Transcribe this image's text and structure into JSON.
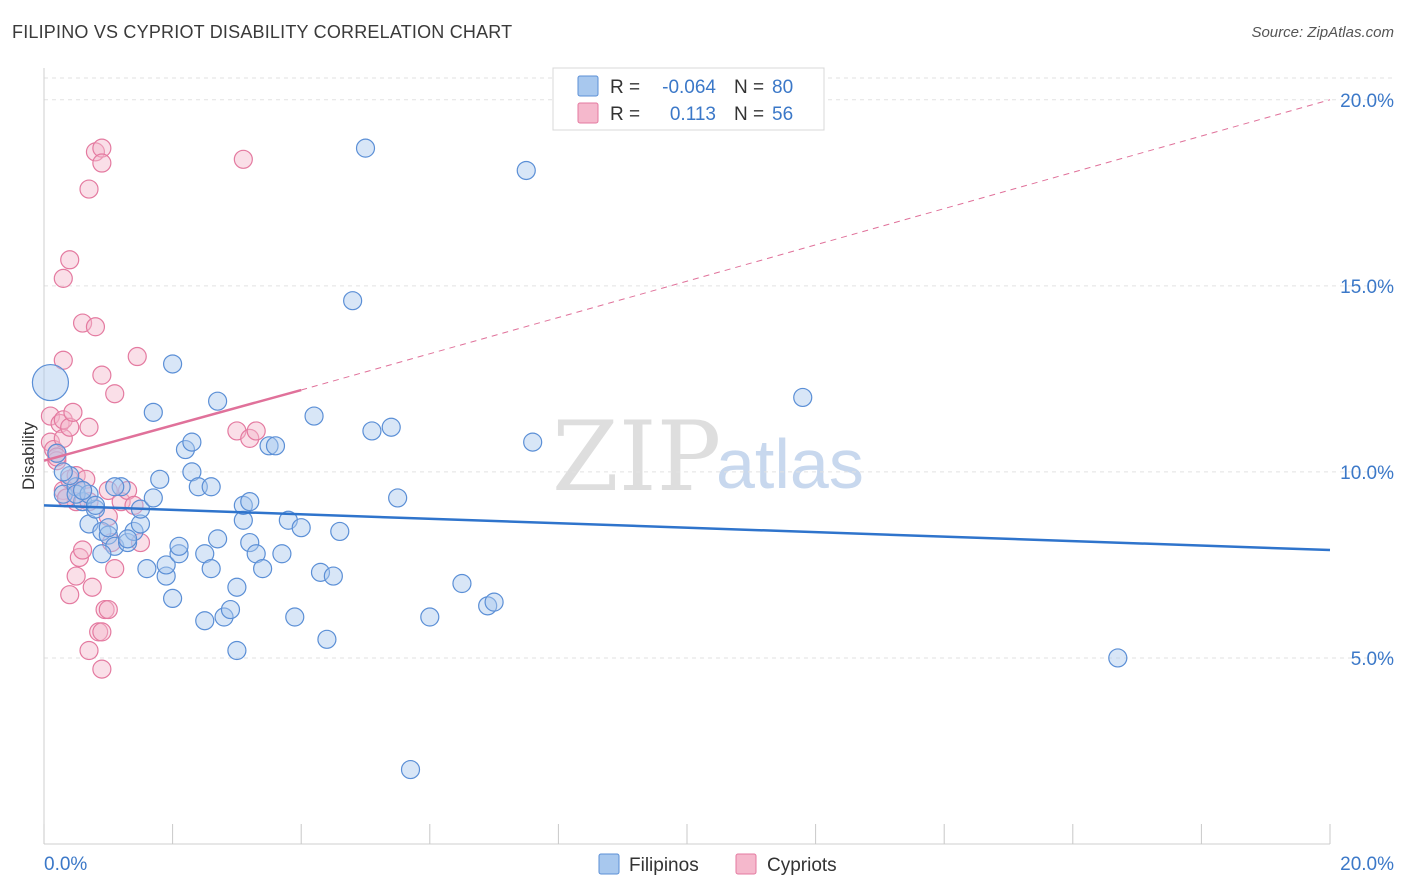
{
  "title": "FILIPINO VS CYPRIOT DISABILITY CORRELATION CHART",
  "source": "Source: ZipAtlas.com",
  "watermark": {
    "zip": "ZIP",
    "atlas": "atlas"
  },
  "colors": {
    "blue_fill": "#a8c8ee",
    "blue_stroke": "#5b8fd6",
    "blue_line": "#2f74cc",
    "pink_fill": "#f5b8cc",
    "pink_stroke": "#e47aa0",
    "pink_line": "#e0719a",
    "tick_text": "#3b78c8",
    "grid": "#e2e2e2"
  },
  "legend_top": {
    "rows": [
      {
        "r_label": "R =",
        "r_value": "-0.064",
        "n_label": "N =",
        "n_value": "80",
        "series": "Filipinos"
      },
      {
        "r_label": "R =",
        "r_value": "0.113",
        "n_label": "N =",
        "n_value": "56",
        "series": "Cypriots"
      }
    ]
  },
  "legend_bottom": {
    "items": [
      "Filipinos",
      "Cypriots"
    ]
  },
  "chart_data": {
    "type": "scatter",
    "title": "FILIPINO VS CYPRIOT DISABILITY CORRELATION CHART",
    "xlabel": "",
    "ylabel": "Disability",
    "xlim": [
      0,
      20
    ],
    "ylim": [
      0,
      20.8
    ],
    "x_tick_labels": {
      "min": "0.0%",
      "max": "20.0%"
    },
    "y_ticks": [
      5,
      10,
      15,
      20
    ],
    "y_tick_labels": [
      "5.0%",
      "10.0%",
      "15.0%",
      "20.0%"
    ],
    "grid": true,
    "series": [
      {
        "name": "Filipinos",
        "r": -0.064,
        "n": 80,
        "trend": {
          "x": [
            0,
            20
          ],
          "y": [
            9.1,
            7.9
          ],
          "dashed_extension": false
        },
        "points": [
          [
            0.1,
            12.4,
            "L"
          ],
          [
            0.2,
            10.5
          ],
          [
            0.3,
            9.4
          ],
          [
            0.5,
            9.6
          ],
          [
            0.6,
            9.2
          ],
          [
            0.7,
            8.6
          ],
          [
            0.8,
            9.0
          ],
          [
            0.9,
            8.4
          ],
          [
            1.0,
            8.3
          ],
          [
            1.1,
            8.0
          ],
          [
            0.4,
            9.9
          ],
          [
            0.5,
            9.4
          ],
          [
            0.7,
            9.4
          ],
          [
            0.9,
            7.8
          ],
          [
            1.0,
            8.5
          ],
          [
            1.2,
            9.6
          ],
          [
            1.3,
            8.1
          ],
          [
            1.4,
            8.4
          ],
          [
            1.5,
            8.6
          ],
          [
            1.5,
            9.0
          ],
          [
            1.6,
            7.4
          ],
          [
            1.7,
            11.6
          ],
          [
            1.7,
            9.3
          ],
          [
            1.8,
            9.8
          ],
          [
            1.9,
            7.2
          ],
          [
            1.9,
            7.5
          ],
          [
            2.0,
            12.9
          ],
          [
            2.0,
            6.6
          ],
          [
            2.1,
            7.8
          ],
          [
            2.1,
            8.0
          ],
          [
            2.2,
            10.6
          ],
          [
            2.3,
            10.0
          ],
          [
            2.3,
            10.8
          ],
          [
            2.4,
            9.6
          ],
          [
            2.5,
            6.0
          ],
          [
            2.5,
            7.8
          ],
          [
            2.6,
            7.4
          ],
          [
            2.6,
            9.6
          ],
          [
            2.7,
            8.2
          ],
          [
            2.7,
            11.9
          ],
          [
            2.8,
            6.1
          ],
          [
            2.9,
            6.3
          ],
          [
            3.0,
            6.9
          ],
          [
            3.0,
            5.2
          ],
          [
            3.1,
            8.7
          ],
          [
            3.1,
            9.1
          ],
          [
            3.2,
            9.2
          ],
          [
            3.2,
            8.1
          ],
          [
            3.3,
            7.8
          ],
          [
            3.4,
            7.4
          ],
          [
            3.5,
            10.7
          ],
          [
            3.6,
            10.7
          ],
          [
            3.7,
            7.8
          ],
          [
            3.8,
            8.7
          ],
          [
            3.9,
            6.1
          ],
          [
            4.0,
            8.5
          ],
          [
            4.2,
            11.5
          ],
          [
            4.3,
            7.3
          ],
          [
            4.4,
            5.5
          ],
          [
            4.5,
            7.2
          ],
          [
            4.6,
            8.4
          ],
          [
            4.8,
            14.6
          ],
          [
            5.0,
            18.7
          ],
          [
            5.1,
            11.1
          ],
          [
            5.4,
            11.2
          ],
          [
            5.5,
            9.3
          ],
          [
            5.7,
            2.0
          ],
          [
            6.0,
            6.1
          ],
          [
            6.5,
            7.0
          ],
          [
            6.9,
            6.4
          ],
          [
            7.0,
            6.5
          ],
          [
            7.5,
            18.1
          ],
          [
            7.6,
            10.8
          ],
          [
            11.8,
            12.0
          ],
          [
            16.7,
            5.0
          ],
          [
            0.3,
            10.0
          ],
          [
            0.6,
            9.5
          ],
          [
            1.1,
            9.6
          ],
          [
            0.8,
            9.1
          ],
          [
            1.3,
            8.2
          ]
        ]
      },
      {
        "name": "Cypriots",
        "r": 0.113,
        "n": 56,
        "trend": {
          "x": [
            0,
            4.0
          ],
          "y": [
            10.3,
            12.2
          ],
          "dashed_extension": true,
          "extension_to": [
            20,
            20.0
          ]
        },
        "points": [
          [
            0.1,
            11.5
          ],
          [
            0.1,
            10.8
          ],
          [
            0.15,
            10.6
          ],
          [
            0.2,
            10.5
          ],
          [
            0.2,
            10.3
          ],
          [
            0.25,
            11.3
          ],
          [
            0.3,
            11.4
          ],
          [
            0.3,
            10.9
          ],
          [
            0.3,
            9.5
          ],
          [
            0.35,
            9.3
          ],
          [
            0.3,
            13.0
          ],
          [
            0.3,
            15.2
          ],
          [
            0.4,
            15.7
          ],
          [
            0.4,
            11.2
          ],
          [
            0.4,
            9.8
          ],
          [
            0.45,
            11.6
          ],
          [
            0.5,
            9.2
          ],
          [
            0.5,
            9.9
          ],
          [
            0.5,
            7.2
          ],
          [
            0.55,
            7.7
          ],
          [
            0.6,
            14.0
          ],
          [
            0.6,
            7.9
          ],
          [
            0.65,
            9.8
          ],
          [
            0.7,
            17.6
          ],
          [
            0.7,
            9.2
          ],
          [
            0.7,
            11.2
          ],
          [
            0.75,
            6.9
          ],
          [
            0.7,
            5.2
          ],
          [
            0.8,
            18.6
          ],
          [
            0.8,
            13.9
          ],
          [
            0.85,
            5.7
          ],
          [
            0.9,
            18.7
          ],
          [
            0.9,
            18.3
          ],
          [
            0.9,
            12.6
          ],
          [
            0.9,
            5.7
          ],
          [
            0.9,
            4.7
          ],
          [
            0.95,
            6.3
          ],
          [
            1.0,
            8.8
          ],
          [
            1.0,
            9.5
          ],
          [
            1.0,
            6.3
          ],
          [
            1.05,
            8.1
          ],
          [
            1.1,
            12.1
          ],
          [
            1.1,
            7.4
          ],
          [
            1.2,
            9.2
          ],
          [
            1.3,
            9.5
          ],
          [
            1.4,
            9.1
          ],
          [
            1.45,
            13.1
          ],
          [
            1.5,
            8.1
          ],
          [
            3.0,
            11.1
          ],
          [
            3.1,
            18.4
          ],
          [
            3.2,
            10.9
          ],
          [
            3.3,
            11.1
          ],
          [
            0.2,
            10.4
          ],
          [
            0.4,
            6.7
          ],
          [
            0.6,
            9.5
          ],
          [
            0.35,
            9.3
          ]
        ]
      }
    ]
  }
}
